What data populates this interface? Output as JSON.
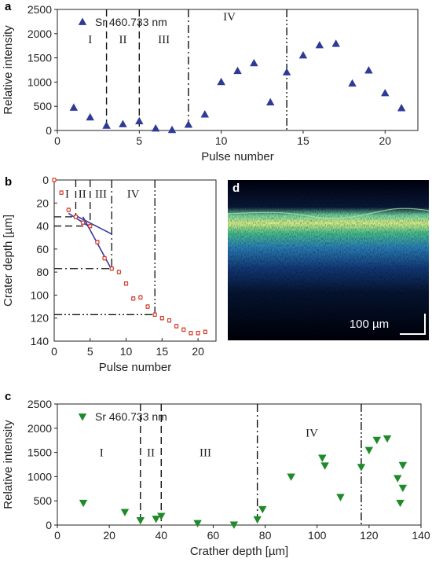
{
  "chart_data": [
    {
      "panel": "a",
      "type": "scatter",
      "xlabel": "Pulse number",
      "ylabel": "Relative intensity",
      "xlim": [
        0,
        22
      ],
      "ylim": [
        0,
        2500
      ],
      "xticks": [
        0,
        5,
        10,
        15,
        20
      ],
      "yticks": [
        0,
        500,
        1000,
        1500,
        2000,
        2500
      ],
      "legend": "top-left",
      "marker": "triangle-up",
      "color": "#2e3a96",
      "series": [
        {
          "name": "Sr 460.733 nm",
          "x": [
            1,
            2,
            3,
            4,
            5,
            6,
            7,
            8,
            9,
            10,
            11,
            12,
            13,
            14,
            15,
            16,
            17,
            18,
            19,
            20,
            21
          ],
          "y": [
            470,
            270,
            100,
            130,
            190,
            40,
            10,
            120,
            330,
            1000,
            1230,
            1390,
            580,
            1200,
            1550,
            1760,
            1790,
            970,
            1240,
            770,
            460
          ]
        }
      ],
      "boundaries": [
        {
          "x": 3,
          "style": "dash"
        },
        {
          "x": 5,
          "style": "dash"
        },
        {
          "x": 8,
          "style": "dashdot"
        },
        {
          "x": 14,
          "style": "dashdotdot"
        }
      ],
      "regions": [
        {
          "label": "I",
          "x": 2,
          "y": 1800
        },
        {
          "label": "II",
          "x": 4,
          "y": 1800
        },
        {
          "label": "III",
          "x": 6.5,
          "y": 1800
        },
        {
          "label": "IV",
          "x": 10.5,
          "y": 2270
        }
      ]
    },
    {
      "panel": "b",
      "type": "scatter",
      "xlabel": "Pulse number",
      "ylabel": "Crater depth [µm]",
      "xlim": [
        0,
        22.5
      ],
      "ylim": [
        0,
        140
      ],
      "y_inverted": true,
      "xticks": [
        0,
        5,
        10,
        15,
        20
      ],
      "yticks": [
        0,
        20,
        40,
        60,
        80,
        100,
        120,
        140
      ],
      "marker": "circle-errorbar",
      "color": "#d43a2a",
      "series": [
        {
          "x": [
            0,
            1,
            2,
            3,
            4,
            5,
            6,
            7,
            8,
            9,
            10,
            11,
            12,
            13,
            14,
            15,
            16,
            17,
            18,
            19,
            20,
            21
          ],
          "y": [
            0,
            11,
            26,
            32,
            37,
            40,
            54,
            68,
            77,
            80,
            90,
            103,
            102,
            110,
            117,
            120,
            122,
            127,
            130,
            133,
            133,
            132
          ]
        }
      ],
      "fit_lines": [
        {
          "x": [
            2,
            5
          ],
          "y": [
            29,
            41
          ]
        },
        {
          "x": [
            3,
            8
          ],
          "y": [
            31,
            47
          ]
        },
        {
          "x": [
            4,
            8
          ],
          "y": [
            32,
            78
          ]
        }
      ],
      "guides": [
        {
          "x": 3,
          "y": 32,
          "style": "dash"
        },
        {
          "x": 5,
          "y": 40,
          "style": "dash"
        },
        {
          "x": 8,
          "y": 77,
          "style": "dashdot"
        },
        {
          "x": 14,
          "y": 117,
          "style": "dashdotdot"
        }
      ],
      "regions": [
        {
          "label": "I",
          "x": 1.8,
          "y": 12
        },
        {
          "label": "II",
          "x": 3.9,
          "y": 12
        },
        {
          "label": "III",
          "x": 6.5,
          "y": 12
        },
        {
          "label": "IV",
          "x": 11,
          "y": 12
        }
      ]
    },
    {
      "panel": "c",
      "type": "scatter",
      "xlabel": "Crather depth [µm]",
      "ylabel": "Relative intensity",
      "xlim": [
        0,
        140
      ],
      "ylim": [
        0,
        2500
      ],
      "xticks": [
        0,
        20,
        40,
        60,
        80,
        100,
        120,
        140
      ],
      "yticks": [
        0,
        500,
        1000,
        1500,
        2000,
        2500
      ],
      "legend": "top-left",
      "marker": "triangle-down",
      "color": "#1f8a2a",
      "series": [
        {
          "name": "Sr 460.733 nm",
          "x": [
            10,
            26,
            32,
            38,
            40,
            54,
            68,
            77,
            79,
            90,
            102,
            103,
            109,
            117,
            120,
            123,
            127,
            131,
            132,
            133,
            133
          ],
          "y": [
            460,
            270,
            100,
            130,
            190,
            40,
            10,
            120,
            330,
            1000,
            1390,
            1230,
            580,
            1200,
            1550,
            1760,
            1790,
            970,
            460,
            770,
            1240
          ]
        }
      ],
      "boundaries": [
        {
          "x": 32,
          "style": "dash"
        },
        {
          "x": 40,
          "style": "dash"
        },
        {
          "x": 77,
          "style": "dashdot"
        },
        {
          "x": 117,
          "style": "dashdotdot"
        }
      ],
      "regions": [
        {
          "label": "I",
          "x": 17,
          "y": 1420
        },
        {
          "label": "II",
          "x": 36,
          "y": 1420
        },
        {
          "label": "III",
          "x": 57,
          "y": 1420
        },
        {
          "label": "IV",
          "x": 98,
          "y": 1830
        }
      ]
    }
  ],
  "image_panel": {
    "panel": "d",
    "scale_bar_label": "100 µm"
  }
}
